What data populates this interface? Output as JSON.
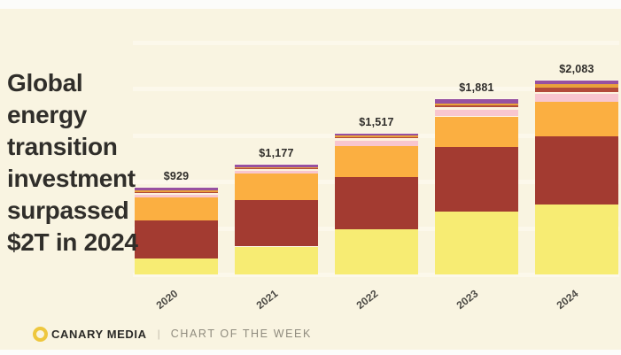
{
  "page": {
    "background_color": "#f9f4e1",
    "frame_color": "#fcfcfa"
  },
  "title": {
    "text": "Global energy transition investment surpassed $2T in 2024"
  },
  "footer": {
    "brand": "CANARY MEDIA",
    "divider": "|",
    "series_label": "CHART OF THE WEEK",
    "logo_color": "#eec73e"
  },
  "chart_data": {
    "type": "bar",
    "stacked": true,
    "unit": "billion USD",
    "title": "Global energy transition investment surpassed $2T in 2024",
    "xlabel": "",
    "ylabel": "",
    "categories": [
      "2020",
      "2021",
      "2022",
      "2023",
      "2024"
    ],
    "totals": [
      929,
      1177,
      1517,
      1881,
      2083
    ],
    "total_labels": [
      "$929",
      "$1,177",
      "$1,517",
      "$1,881",
      "$2,083"
    ],
    "series_order": "bottom-to-top",
    "series": [
      {
        "name": "yellow",
        "values": [
          170,
          300,
          490,
          675,
          755
        ]
      },
      {
        "name": "dark-red",
        "values": [
          410,
          502,
          560,
          695,
          735
        ]
      },
      {
        "name": "orange",
        "values": [
          250,
          280,
          330,
          330,
          370
        ]
      },
      {
        "name": "pink",
        "values": [
          29,
          35,
          60,
          76,
          82
        ]
      },
      {
        "name": "cream",
        "values": [
          22,
          15,
          25,
          20,
          16
        ]
      },
      {
        "name": "brick",
        "values": [
          5,
          8,
          10,
          20,
          55
        ]
      },
      {
        "name": "gold",
        "values": [
          19,
          15,
          18,
          20,
          35
        ]
      },
      {
        "name": "purple",
        "values": [
          24,
          22,
          24,
          45,
          35
        ]
      }
    ],
    "colors": {
      "yellow": "#f7ec73",
      "dark-red": "#a33b31",
      "orange": "#fbaf41",
      "pink": "#f8c6cf",
      "cream": "#fdf2df",
      "brick": "#b24b3a",
      "gold": "#e9a23b",
      "purple": "#9751a1"
    },
    "ylim": [
      0,
      2500
    ],
    "gridline_interval": 500,
    "grid": true,
    "y_tick_labels_visible": false,
    "legend": "none",
    "bar_labels_position": "above"
  }
}
